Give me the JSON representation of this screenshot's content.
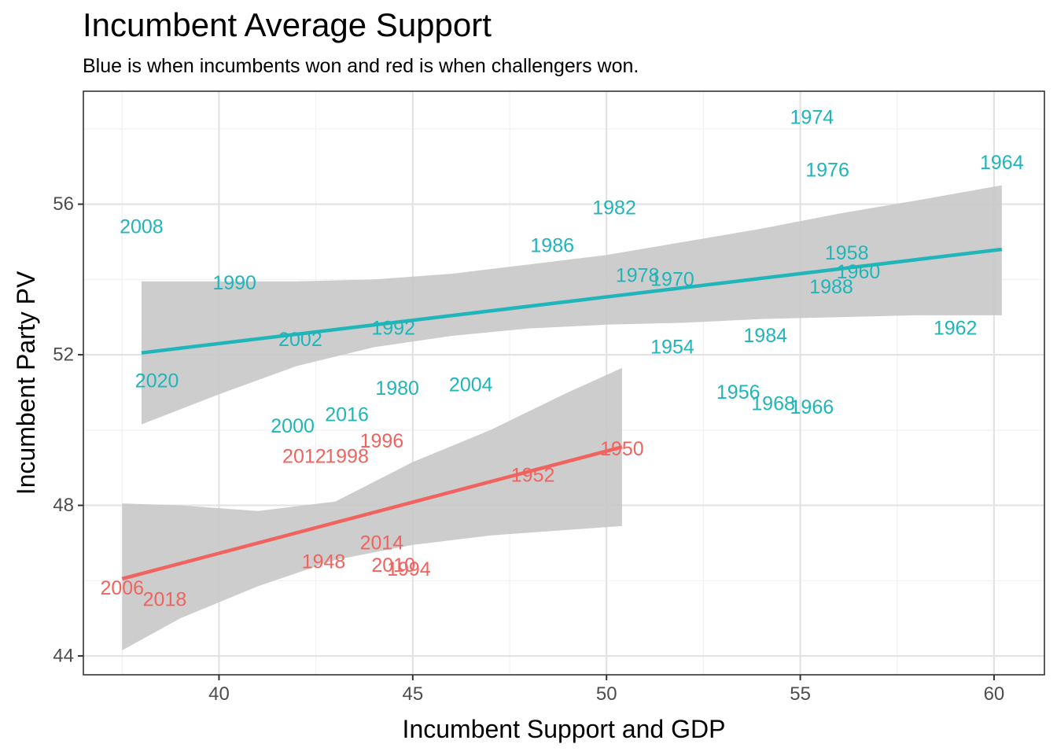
{
  "title": "Incumbent Average Support",
  "subtitle": "Blue is when incumbents won and red is when challengers won.",
  "colors": {
    "incumbent_won": "#1fb5b9",
    "challenger_won": "#f0635e",
    "ribbon": "#c8c8c8"
  },
  "chart_data": {
    "type": "scatter",
    "xlabel": "Incumbent Support and GDP",
    "ylabel": "Incumbent Party PV",
    "xlim": [
      36.5,
      61.3
    ],
    "ylim": [
      43.5,
      59.0
    ],
    "xticks": [
      40,
      45,
      50,
      55,
      60
    ],
    "yticks": [
      44,
      48,
      52,
      56
    ],
    "grid": true,
    "legend": "none",
    "series": [
      {
        "key": "incumbent_won",
        "points": [
          {
            "label": "1974",
            "x": 55.3,
            "y": 58.3
          },
          {
            "label": "1964",
            "x": 60.2,
            "y": 57.1
          },
          {
            "label": "1976",
            "x": 55.7,
            "y": 56.9
          },
          {
            "label": "1982",
            "x": 50.2,
            "y": 55.9
          },
          {
            "label": "2008",
            "x": 38.0,
            "y": 55.4
          },
          {
            "label": "1986",
            "x": 48.6,
            "y": 54.9
          },
          {
            "label": "1958",
            "x": 56.2,
            "y": 54.7
          },
          {
            "label": "1960",
            "x": 56.5,
            "y": 54.2
          },
          {
            "label": "1978",
            "x": 50.8,
            "y": 54.1
          },
          {
            "label": "1970",
            "x": 51.7,
            "y": 54.0
          },
          {
            "label": "1990",
            "x": 40.4,
            "y": 53.9
          },
          {
            "label": "1988",
            "x": 55.8,
            "y": 53.8
          },
          {
            "label": "1992",
            "x": 44.5,
            "y": 52.7
          },
          {
            "label": "1984",
            "x": 54.1,
            "y": 52.5
          },
          {
            "label": "1962",
            "x": 59.0,
            "y": 52.7
          },
          {
            "label": "2002",
            "x": 42.1,
            "y": 52.4
          },
          {
            "label": "1954",
            "x": 51.7,
            "y": 52.2
          },
          {
            "label": "2020",
            "x": 38.4,
            "y": 51.3
          },
          {
            "label": "2004",
            "x": 46.5,
            "y": 51.2
          },
          {
            "label": "1980",
            "x": 44.6,
            "y": 51.1
          },
          {
            "label": "1956",
            "x": 53.4,
            "y": 51.0
          },
          {
            "label": "1968",
            "x": 54.3,
            "y": 50.7
          },
          {
            "label": "1966",
            "x": 55.3,
            "y": 50.6
          },
          {
            "label": "2016",
            "x": 43.3,
            "y": 50.4
          },
          {
            "label": "2000",
            "x": 41.9,
            "y": 50.1
          }
        ],
        "fit": {
          "x": [
            38.0,
            60.2
          ],
          "y": [
            52.05,
            54.8
          ]
        },
        "band": {
          "x": [
            38.0,
            40,
            42,
            44,
            46,
            48,
            50,
            52,
            54,
            56,
            58,
            60.2
          ],
          "lower": [
            50.15,
            50.95,
            51.7,
            52.2,
            52.5,
            52.7,
            52.8,
            52.85,
            52.95,
            53.0,
            53.05,
            53.05
          ],
          "upper": [
            53.95,
            53.95,
            53.95,
            54.0,
            54.15,
            54.4,
            54.65,
            55.0,
            55.35,
            55.75,
            56.1,
            56.5
          ]
        }
      },
      {
        "key": "challenger_won",
        "points": [
          {
            "label": "1996",
            "x": 44.2,
            "y": 49.7
          },
          {
            "label": "1950",
            "x": 50.4,
            "y": 49.5
          },
          {
            "label": "2012",
            "x": 42.2,
            "y": 49.3
          },
          {
            "label": "1998",
            "x": 43.3,
            "y": 49.3
          },
          {
            "label": "1952",
            "x": 48.1,
            "y": 48.8
          },
          {
            "label": "2014",
            "x": 44.2,
            "y": 47.0
          },
          {
            "label": "1948",
            "x": 42.7,
            "y": 46.5
          },
          {
            "label": "2010",
            "x": 44.5,
            "y": 46.4
          },
          {
            "label": "1994",
            "x": 44.9,
            "y": 46.3
          },
          {
            "label": "2006",
            "x": 37.5,
            "y": 45.8
          },
          {
            "label": "2018",
            "x": 38.6,
            "y": 45.5
          }
        ],
        "fit": {
          "x": [
            37.5,
            50.4
          ],
          "y": [
            46.05,
            49.55
          ]
        },
        "band": {
          "x": [
            37.5,
            39,
            41,
            43,
            45,
            47,
            49,
            50.4
          ],
          "lower": [
            44.15,
            45.0,
            45.85,
            46.55,
            46.95,
            47.2,
            47.35,
            47.45
          ],
          "upper": [
            48.05,
            48.0,
            47.85,
            48.1,
            49.15,
            50.0,
            51.0,
            51.65
          ]
        }
      }
    ]
  }
}
